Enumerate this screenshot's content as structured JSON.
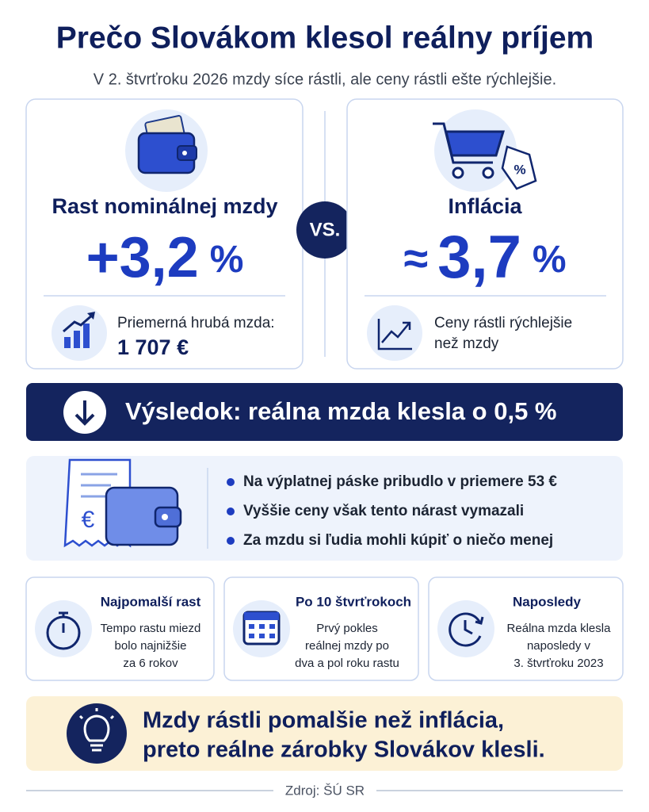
{
  "header": {
    "title": "Prečo Slovákom klesol reálny príjem",
    "subtitle": "V 2. štvrťroku 2026 mzdy síce rástli, ale ceny rástli ešte rýchlejšie."
  },
  "wage": {
    "label": "Rast nominálnej mzdy",
    "value": "+3,2",
    "unit": "%",
    "note_label": "Priemerná hrubá mzda:",
    "note_value": "1 707 €"
  },
  "vs": "VS.",
  "inflation": {
    "label": "Inflácia",
    "prefix": "≈",
    "value": "3,7",
    "unit": "%",
    "note_lines": [
      "Ceny rástli rýchlejšie",
      "než mzdy"
    ]
  },
  "result": "Výsledok: reálna mzda klesla o 0,5 %",
  "bullets": [
    "Na výplatnej páske pribudlo v priemere 53 €",
    "Vyššie ceny však tento nárast vymazali",
    "Za mzdu si ľudia mohli kúpiť o niečo menej"
  ],
  "facts": [
    {
      "title": "Najpomalší rast",
      "lines": [
        "Tempo rastu miezd",
        "bolo najnižšie",
        "za 6 rokov"
      ]
    },
    {
      "title": "Po 10 štvrťrokoch",
      "lines": [
        "Prvý pokles",
        "reálnej mzdy po",
        "dva a pol roku rastu"
      ]
    },
    {
      "title": "Naposledy",
      "lines": [
        "Reálna mzda klesla",
        "naposledy v",
        "3. štvrťroku 2023"
      ]
    }
  ],
  "conclusion": {
    "lines": [
      "Mzdy rástli pomalšie než inflácia,",
      "preto reálne zárobky Slovákov klesli."
    ]
  },
  "source": "Zdroj: ŠÚ SR"
}
